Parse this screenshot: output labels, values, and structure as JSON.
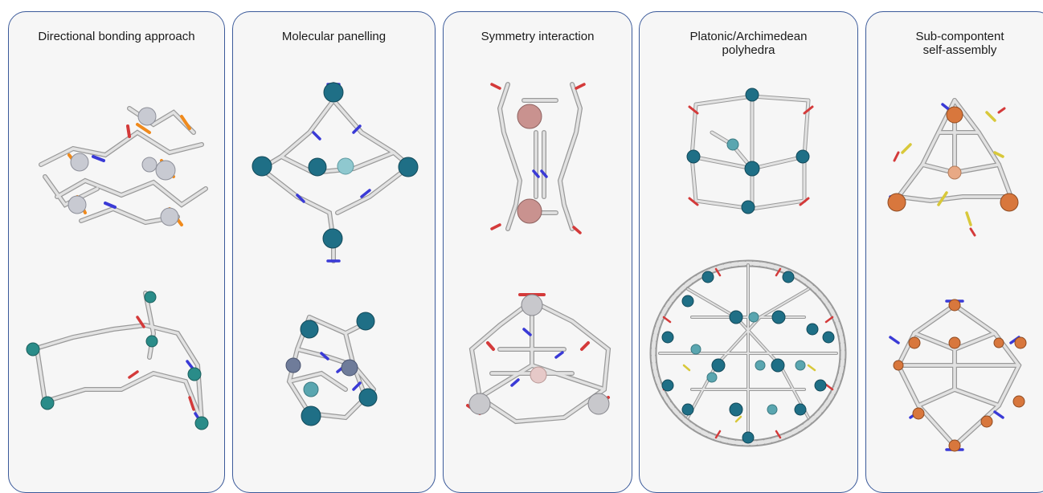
{
  "panels": [
    {
      "title": "Directional bonding approach"
    },
    {
      "title": "Molecular panelling"
    },
    {
      "title": "Symmetry interaction"
    },
    {
      "title": "Platonic/Archimedean\npolyhedra"
    },
    {
      "title": "Sub-compontent\nself-assembly"
    }
  ],
  "colors": {
    "border": "#3b5a9a",
    "panel_bg": "#f6f6f6",
    "stick": "#cfcfcf",
    "stick_dark": "#8c8c8c",
    "nitrogen": "#3a3ad6",
    "oxygen": "#d43a3a",
    "phosphorus": "#f08a1c",
    "sulfur": "#d8c83a",
    "metal_teal": "#1f6f86",
    "metal_grey": "#c8cad2",
    "metal_pink": "#c9928f",
    "metal_orange": "#d8773d"
  }
}
